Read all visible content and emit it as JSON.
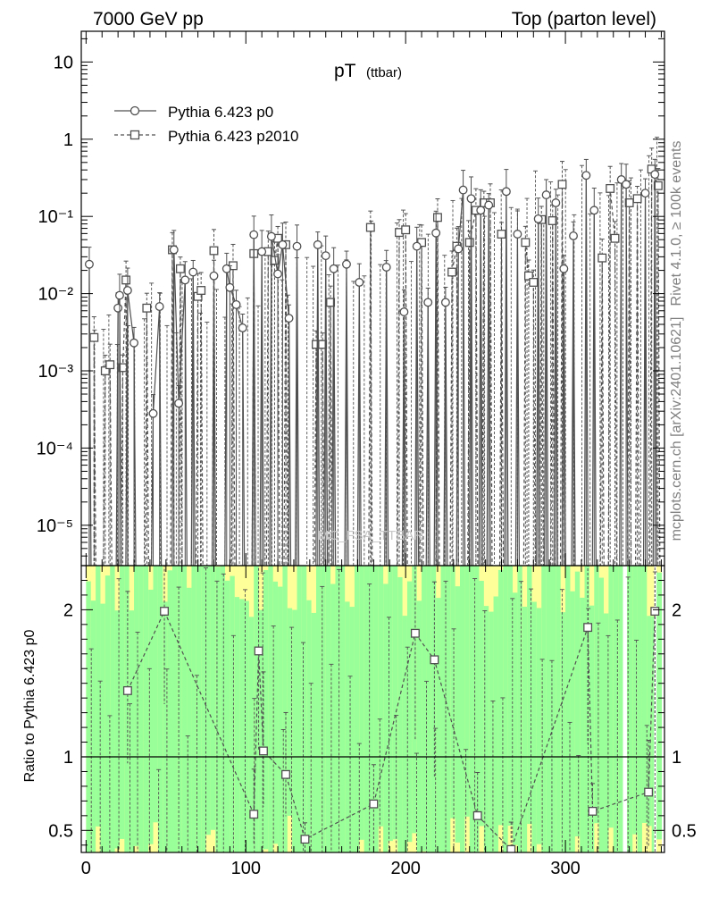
{
  "header": {
    "left": "7000 GeV pp",
    "right": "Top (parton level)"
  },
  "side_labels": {
    "rivet": "Rivet 4.1.0, ≥ 100k events",
    "mcplots": "mcplots.cern.ch [arXiv:2401.10621]"
  },
  "watermark": "MC_FSA_TTBAR",
  "colors": {
    "series": "#505050",
    "band_inner": "#99ff99",
    "band_outer": "#ffff99",
    "axis": "#000000"
  },
  "chart_data": [
    {
      "type": "line",
      "panel": "main",
      "title": "pT",
      "title_suffix": "(ttbar)",
      "xlabel": "",
      "ylabel": "",
      "xlim": [
        -3,
        362
      ],
      "ylim": [
        3e-06,
        25
      ],
      "yscale": "log",
      "y_tick_labels": [
        "10⁻⁵",
        "10⁻⁴",
        "10⁻³",
        "10⁻²",
        "10⁻¹",
        "1",
        "10"
      ],
      "x_ticks": [
        0,
        100,
        200,
        300
      ],
      "legend": [
        "Pythia 6.423 p0",
        "Pythia 6.423 p2010"
      ],
      "legend_position": "top-left",
      "series": [
        {
          "name": "Pythia 6.423 p0",
          "marker": "circle",
          "line": "solid",
          "points": [
            [
              2,
              0.024
            ],
            [
              20,
              0.0065
            ],
            [
              21,
              0.0095
            ],
            [
              26,
              0.011
            ],
            [
              30,
              0.0023
            ],
            [
              42,
              0.00028
            ],
            [
              46,
              0.0068
            ],
            [
              55,
              0.037
            ],
            [
              58,
              0.00038
            ],
            [
              62,
              0.015
            ],
            [
              67,
              0.019
            ],
            [
              80,
              0.017
            ],
            [
              88,
              0.021
            ],
            [
              90,
              0.012
            ],
            [
              94,
              0.0072
            ],
            [
              98,
              0.0036
            ],
            [
              105,
              0.058
            ],
            [
              110,
              0.035
            ],
            [
              116,
              0.055
            ],
            [
              120,
              0.018
            ],
            [
              123,
              0.043
            ],
            [
              127,
              0.0048
            ],
            [
              132,
              0.041
            ],
            [
              145,
              0.043
            ],
            [
              150,
              0.031
            ],
            [
              155,
              0.021
            ],
            [
              163,
              0.024
            ],
            [
              171,
              0.014
            ],
            [
              188,
              0.022
            ],
            [
              199,
              0.0058
            ],
            [
              207,
              0.041
            ],
            [
              214,
              0.0077
            ],
            [
              219,
              0.061
            ],
            [
              225,
              0.0077
            ],
            [
              233,
              0.038
            ],
            [
              236,
              0.22
            ],
            [
              241,
              0.17
            ],
            [
              247,
              0.12
            ],
            [
              252,
              0.14
            ],
            [
              263,
              0.21
            ],
            [
              270,
              0.059
            ],
            [
              283,
              0.093
            ],
            [
              288,
              0.19
            ],
            [
              294,
              0.15
            ],
            [
              299,
              0.021
            ],
            [
              305,
              0.056
            ],
            [
              313,
              0.34
            ],
            [
              318,
              0.12
            ],
            [
              335,
              0.3
            ],
            [
              338,
              0.26
            ],
            [
              350,
              0.2
            ],
            [
              356,
              0.35
            ]
          ]
        },
        {
          "name": "Pythia 6.423 p2010",
          "marker": "square",
          "line": "dashed",
          "points": [
            [
              5,
              0.0027
            ],
            [
              12,
              0.001
            ],
            [
              15,
              0.0012
            ],
            [
              23,
              0.0011
            ],
            [
              25,
              0.015
            ],
            [
              38,
              0.0065
            ],
            [
              54,
              0.037
            ],
            [
              59,
              0.021
            ],
            [
              70,
              0.0092
            ],
            [
              72,
              0.011
            ],
            [
              80,
              0.036
            ],
            [
              92,
              0.023
            ],
            [
              105,
              0.033
            ],
            [
              114,
              0.035
            ],
            [
              118,
              0.027
            ],
            [
              120,
              0.052
            ],
            [
              125,
              0.043
            ],
            [
              144,
              0.0022
            ],
            [
              148,
              0.0022
            ],
            [
              153,
              0.0077
            ],
            [
              178,
              0.072
            ],
            [
              196,
              0.062
            ],
            [
              200,
              0.067
            ],
            [
              210,
              0.046
            ],
            [
              220,
              0.097
            ],
            [
              229,
              0.019
            ],
            [
              232,
              0.041
            ],
            [
              240,
              0.046
            ],
            [
              244,
              0.12
            ],
            [
              249,
              0.15
            ],
            [
              253,
              0.15
            ],
            [
              260,
              0.059
            ],
            [
              275,
              0.046
            ],
            [
              277,
              0.017
            ],
            [
              280,
              0.014
            ],
            [
              285,
              0.091
            ],
            [
              292,
              0.088
            ],
            [
              298,
              0.26
            ],
            [
              323,
              0.029
            ],
            [
              328,
              0.23
            ],
            [
              331,
              0.052
            ],
            [
              340,
              0.15
            ],
            [
              345,
              0.17
            ],
            [
              354,
              0.41
            ],
            [
              358,
              0.25
            ]
          ]
        }
      ]
    },
    {
      "type": "line",
      "panel": "ratio",
      "ylabel": "Ratio to Pythia 6.423 p0",
      "xlim": [
        -3,
        362
      ],
      "ylim": [
        0.35,
        2.3
      ],
      "y_tick_labels": [
        "0.5",
        "1",
        "2"
      ],
      "x_tick_labels": [
        "0",
        "100",
        "200",
        "300"
      ],
      "reference": 1,
      "series": [
        {
          "name": "Pythia 6.423 p2010",
          "marker": "square",
          "line": "dashed",
          "points": [
            [
              26,
              1.45
            ],
            [
              49,
              1.99
            ],
            [
              105,
              0.61
            ],
            [
              108,
              1.72
            ],
            [
              111,
              1.04
            ],
            [
              125,
              0.88
            ],
            [
              137,
              0.44
            ],
            [
              180,
              0.68
            ],
            [
              206,
              1.84
            ],
            [
              218,
              1.66
            ],
            [
              245,
              0.6
            ],
            [
              266,
              0.37
            ],
            [
              314,
              1.88
            ],
            [
              317,
              0.63
            ],
            [
              352,
              0.76
            ],
            [
              356,
              1.99
            ]
          ]
        }
      ]
    }
  ]
}
